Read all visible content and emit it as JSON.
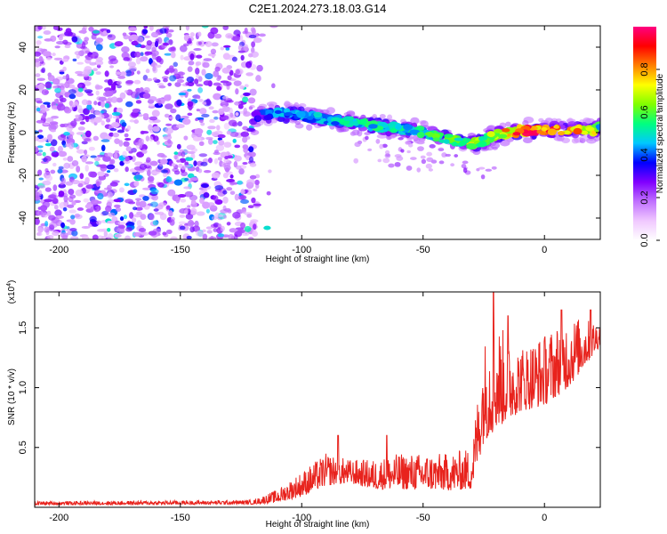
{
  "title": "C2E1.2024.273.18.03.G14",
  "chart_data": [
    {
      "type": "heatmap",
      "xlabel": "Height of straight line (km)",
      "ylabel": "Frequency (Hz)",
      "xlim": [
        -210,
        23
      ],
      "ylim": [
        -50,
        50
      ],
      "x_ticks": [
        -200,
        -150,
        -100,
        -50,
        0
      ],
      "y_ticks": [
        -40,
        -20,
        0,
        20,
        40
      ],
      "colorbar": {
        "label": "Normalized spectral amplitude",
        "range": [
          0,
          1
        ],
        "ticks": [
          "0.0",
          "0.2",
          "0.4",
          "0.6",
          "0.8"
        ],
        "tick_values": [
          0.0,
          0.2,
          0.4,
          0.6,
          0.8
        ],
        "colors": [
          "#ffffff",
          "#f0c8ff",
          "#c070ff",
          "#8000ff",
          "#0000ff",
          "#00c8ff",
          "#00ff80",
          "#80ff00",
          "#ffff00",
          "#ff8000",
          "#ff0000",
          "#ff0080"
        ]
      },
      "noise_region": {
        "x_range": [
          -210,
          -118
        ],
        "y_range": [
          -50,
          50
        ],
        "amplitude": 0.15
      },
      "ridge": {
        "x": [
          -120,
          -110,
          -100,
          -90,
          -80,
          -70,
          -60,
          -50,
          -40,
          -35,
          -30,
          -25,
          -20,
          -10,
          0,
          10,
          20,
          23
        ],
        "y": [
          8,
          9,
          8,
          6,
          5,
          3,
          2,
          0,
          -3,
          -4,
          -5,
          -4,
          -1,
          1,
          1,
          1,
          1,
          3
        ],
        "amplitude": [
          0.35,
          0.45,
          0.45,
          0.5,
          0.5,
          0.55,
          0.5,
          0.55,
          0.6,
          0.6,
          0.7,
          0.6,
          0.7,
          0.9,
          0.9,
          0.85,
          0.8,
          0.5
        ]
      }
    },
    {
      "type": "line",
      "xlabel": "Height of straight line (km)",
      "ylabel": "SNR (10 * v/v)",
      "multiplier": "(x10⁴)",
      "multiplier_base": "(x10",
      "multiplier_exp": "4",
      "xlim": [
        -210,
        23
      ],
      "ylim": [
        0,
        18000
      ],
      "x_ticks": [
        -200,
        -150,
        -100,
        -50,
        0
      ],
      "y_ticks": [
        5000,
        10000,
        15000
      ],
      "y_tick_labels": [
        "0.5",
        "1.0",
        "1.5"
      ],
      "series": [
        {
          "color": "#e8231d",
          "envelope_x": [
            -210,
            -120,
            -110,
            -100,
            -90,
            -80,
            -70,
            -60,
            -50,
            -40,
            -30,
            -25,
            -20,
            -10,
            0,
            10,
            23
          ],
          "envelope_low": [
            200,
            250,
            400,
            900,
            1800,
            2000,
            1500,
            1500,
            1500,
            1400,
            1500,
            5500,
            6500,
            8000,
            8500,
            10000,
            13500
          ],
          "envelope_high": [
            500,
            600,
            1500,
            3000,
            4500,
            4000,
            4000,
            4500,
            4500,
            4500,
            5000,
            14000,
            15500,
            13500,
            14500,
            16000,
            15500
          ],
          "spikes": [
            {
              "x": -85,
              "y": 6000
            },
            {
              "x": -65,
              "y": 6000
            },
            {
              "x": -21,
              "y": 18000
            },
            {
              "x": -15,
              "y": 16000
            },
            {
              "x": 7,
              "y": 16500
            },
            {
              "x": 19,
              "y": 16500
            }
          ]
        }
      ]
    }
  ]
}
